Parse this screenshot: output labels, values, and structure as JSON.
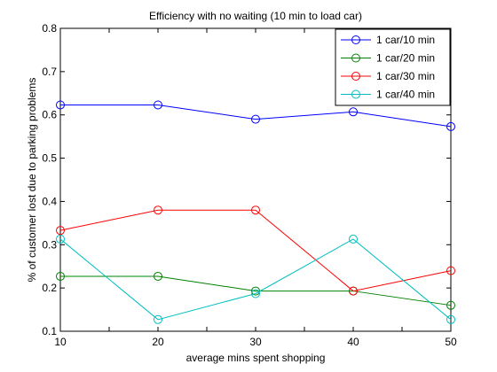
{
  "chart_data": {
    "type": "line",
    "title": "Efficiency with no waiting (10 min to load car)",
    "xlabel": "average mins spent shopping",
    "ylabel": "% of customer lost due to parking problems",
    "xlim": [
      10,
      50
    ],
    "ylim": [
      0.1,
      0.8
    ],
    "xticks": [
      10,
      20,
      30,
      40,
      50
    ],
    "xtick_labels": [
      "10",
      "20",
      "30",
      "40",
      "50"
    ],
    "yticks": [
      0.1,
      0.2,
      0.3,
      0.4,
      0.5,
      0.6,
      0.7,
      0.8
    ],
    "ytick_labels": [
      "0.1",
      "0.2",
      "0.3",
      "0.4",
      "0.5",
      "0.6",
      "0.7",
      "0.8"
    ],
    "grid": false,
    "legend_position": "top-right",
    "x": [
      10,
      20,
      30,
      40,
      50
    ],
    "series": [
      {
        "name": "1 car/10 min",
        "color": "#0000ff",
        "values": [
          0.623,
          0.623,
          0.59,
          0.607,
          0.573
        ]
      },
      {
        "name": "1 car/20 min",
        "color": "#008000",
        "values": [
          0.227,
          0.227,
          0.193,
          0.193,
          0.16
        ]
      },
      {
        "name": "1 car/30 min",
        "color": "#ff0000",
        "values": [
          0.333,
          0.38,
          0.38,
          0.193,
          0.24
        ]
      },
      {
        "name": "1 car/40 min",
        "color": "#00bfbf",
        "values": [
          0.313,
          0.127,
          0.187,
          0.313,
          0.127
        ]
      }
    ]
  }
}
